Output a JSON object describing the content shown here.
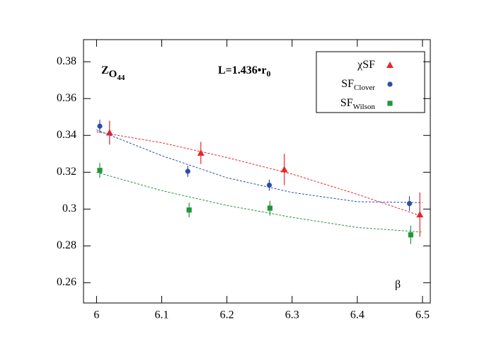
{
  "chart_data": {
    "type": "scatter",
    "title": {
      "main": "Z",
      "sub": "O",
      "subsub": "44"
    },
    "annotation": {
      "main": "L=1.436•r",
      "sub": "0"
    },
    "x_label": "β",
    "xlim": [
      5.98,
      6.512
    ],
    "ylim": [
      0.249,
      0.392
    ],
    "xticks": [
      6,
      6.1,
      6.2,
      6.3,
      6.4,
      6.5
    ],
    "yticks": [
      0.26,
      0.28,
      0.3,
      0.32,
      0.34,
      0.36,
      0.38
    ],
    "series": [
      {
        "name": "χSF",
        "marker": "triangle",
        "color": "#e8262b",
        "x": [
          6.02,
          6.16,
          6.288,
          6.496
        ],
        "values": [
          0.3415,
          0.3305,
          0.3215,
          0.297
        ],
        "errors": [
          0.0065,
          0.006,
          0.0085,
          0.012
        ],
        "fit_x": [
          6.0,
          6.1,
          6.2,
          6.3,
          6.4,
          6.5
        ],
        "fit_values": [
          0.342,
          0.336,
          0.328,
          0.319,
          0.308,
          0.296
        ]
      },
      {
        "name": "SF",
        "name_sub": "Clover",
        "marker": "circle",
        "color": "#2b4fa3",
        "x": [
          6.005,
          6.14,
          6.265,
          6.48
        ],
        "values": [
          0.345,
          0.3205,
          0.313,
          0.303
        ],
        "errors": [
          0.0035,
          0.003,
          0.003,
          0.004
        ],
        "fit_x": [
          6.0,
          6.1,
          6.2,
          6.3,
          6.4,
          6.5
        ],
        "fit_values": [
          0.343,
          0.329,
          0.317,
          0.309,
          0.304,
          0.3035
        ]
      },
      {
        "name": "SF",
        "name_sub": "Wilson",
        "marker": "square",
        "color": "#23963a",
        "x": [
          6.005,
          6.142,
          6.266,
          6.482
        ],
        "values": [
          0.321,
          0.2995,
          0.3005,
          0.286
        ],
        "errors": [
          0.004,
          0.004,
          0.004,
          0.005
        ],
        "fit_x": [
          6.0,
          6.1,
          6.2,
          6.3,
          6.4,
          6.5
        ],
        "fit_values": [
          0.32,
          0.31,
          0.302,
          0.2955,
          0.29,
          0.2875
        ]
      }
    ]
  }
}
